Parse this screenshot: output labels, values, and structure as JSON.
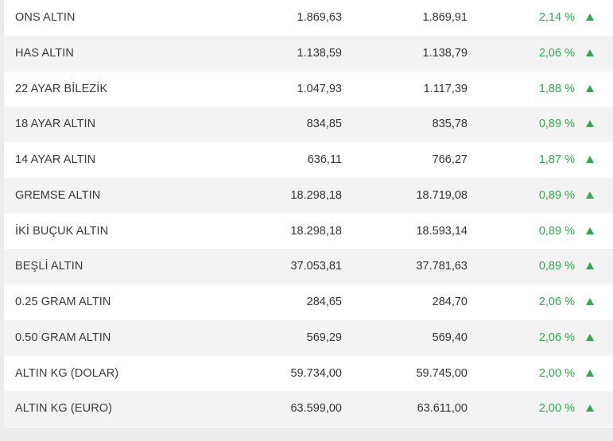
{
  "accent_color": "#2fa84f",
  "rows": [
    {
      "name": "ONS ALTIN",
      "buy": "1.869,63",
      "sell": "1.869,91",
      "change": "2,14 %",
      "trend_icon": "up-triangle"
    },
    {
      "name": "HAS ALTIN",
      "buy": "1.138,59",
      "sell": "1.138,79",
      "change": "2,06 %",
      "trend_icon": "up-triangle"
    },
    {
      "name": "22 AYAR BİLEZİK",
      "buy": "1.047,93",
      "sell": "1.117,39",
      "change": "1,88 %",
      "trend_icon": "up-triangle"
    },
    {
      "name": "18 AYAR ALTIN",
      "buy": "834,85",
      "sell": "835,78",
      "change": "0,89 %",
      "trend_icon": "up-triangle"
    },
    {
      "name": "14 AYAR ALTIN",
      "buy": "636,11",
      "sell": "766,27",
      "change": "1,87 %",
      "trend_icon": "up-triangle"
    },
    {
      "name": "GREMSE ALTIN",
      "buy": "18.298,18",
      "sell": "18.719,08",
      "change": "0,89 %",
      "trend_icon": "up-triangle"
    },
    {
      "name": "İKİ BUÇUK ALTIN",
      "buy": "18.298,18",
      "sell": "18.593,14",
      "change": "0,89 %",
      "trend_icon": "up-triangle"
    },
    {
      "name": "BEŞLİ ALTIN",
      "buy": "37.053,81",
      "sell": "37.781,63",
      "change": "0,89 %",
      "trend_icon": "up-triangle"
    },
    {
      "name": "0.25 GRAM ALTIN",
      "buy": "284,65",
      "sell": "284,70",
      "change": "2,06 %",
      "trend_icon": "up-triangle"
    },
    {
      "name": "0.50 GRAM ALTIN",
      "buy": "569,29",
      "sell": "569,40",
      "change": "2,06 %",
      "trend_icon": "up-triangle"
    },
    {
      "name": "ALTIN KG (DOLAR)",
      "buy": "59.734,00",
      "sell": "59.745,00",
      "change": "2,00 %",
      "trend_icon": "up-triangle"
    },
    {
      "name": "ALTIN KG (EURO)",
      "buy": "63.599,00",
      "sell": "63.611,00",
      "change": "2,00 %",
      "trend_icon": "up-triangle"
    }
  ]
}
